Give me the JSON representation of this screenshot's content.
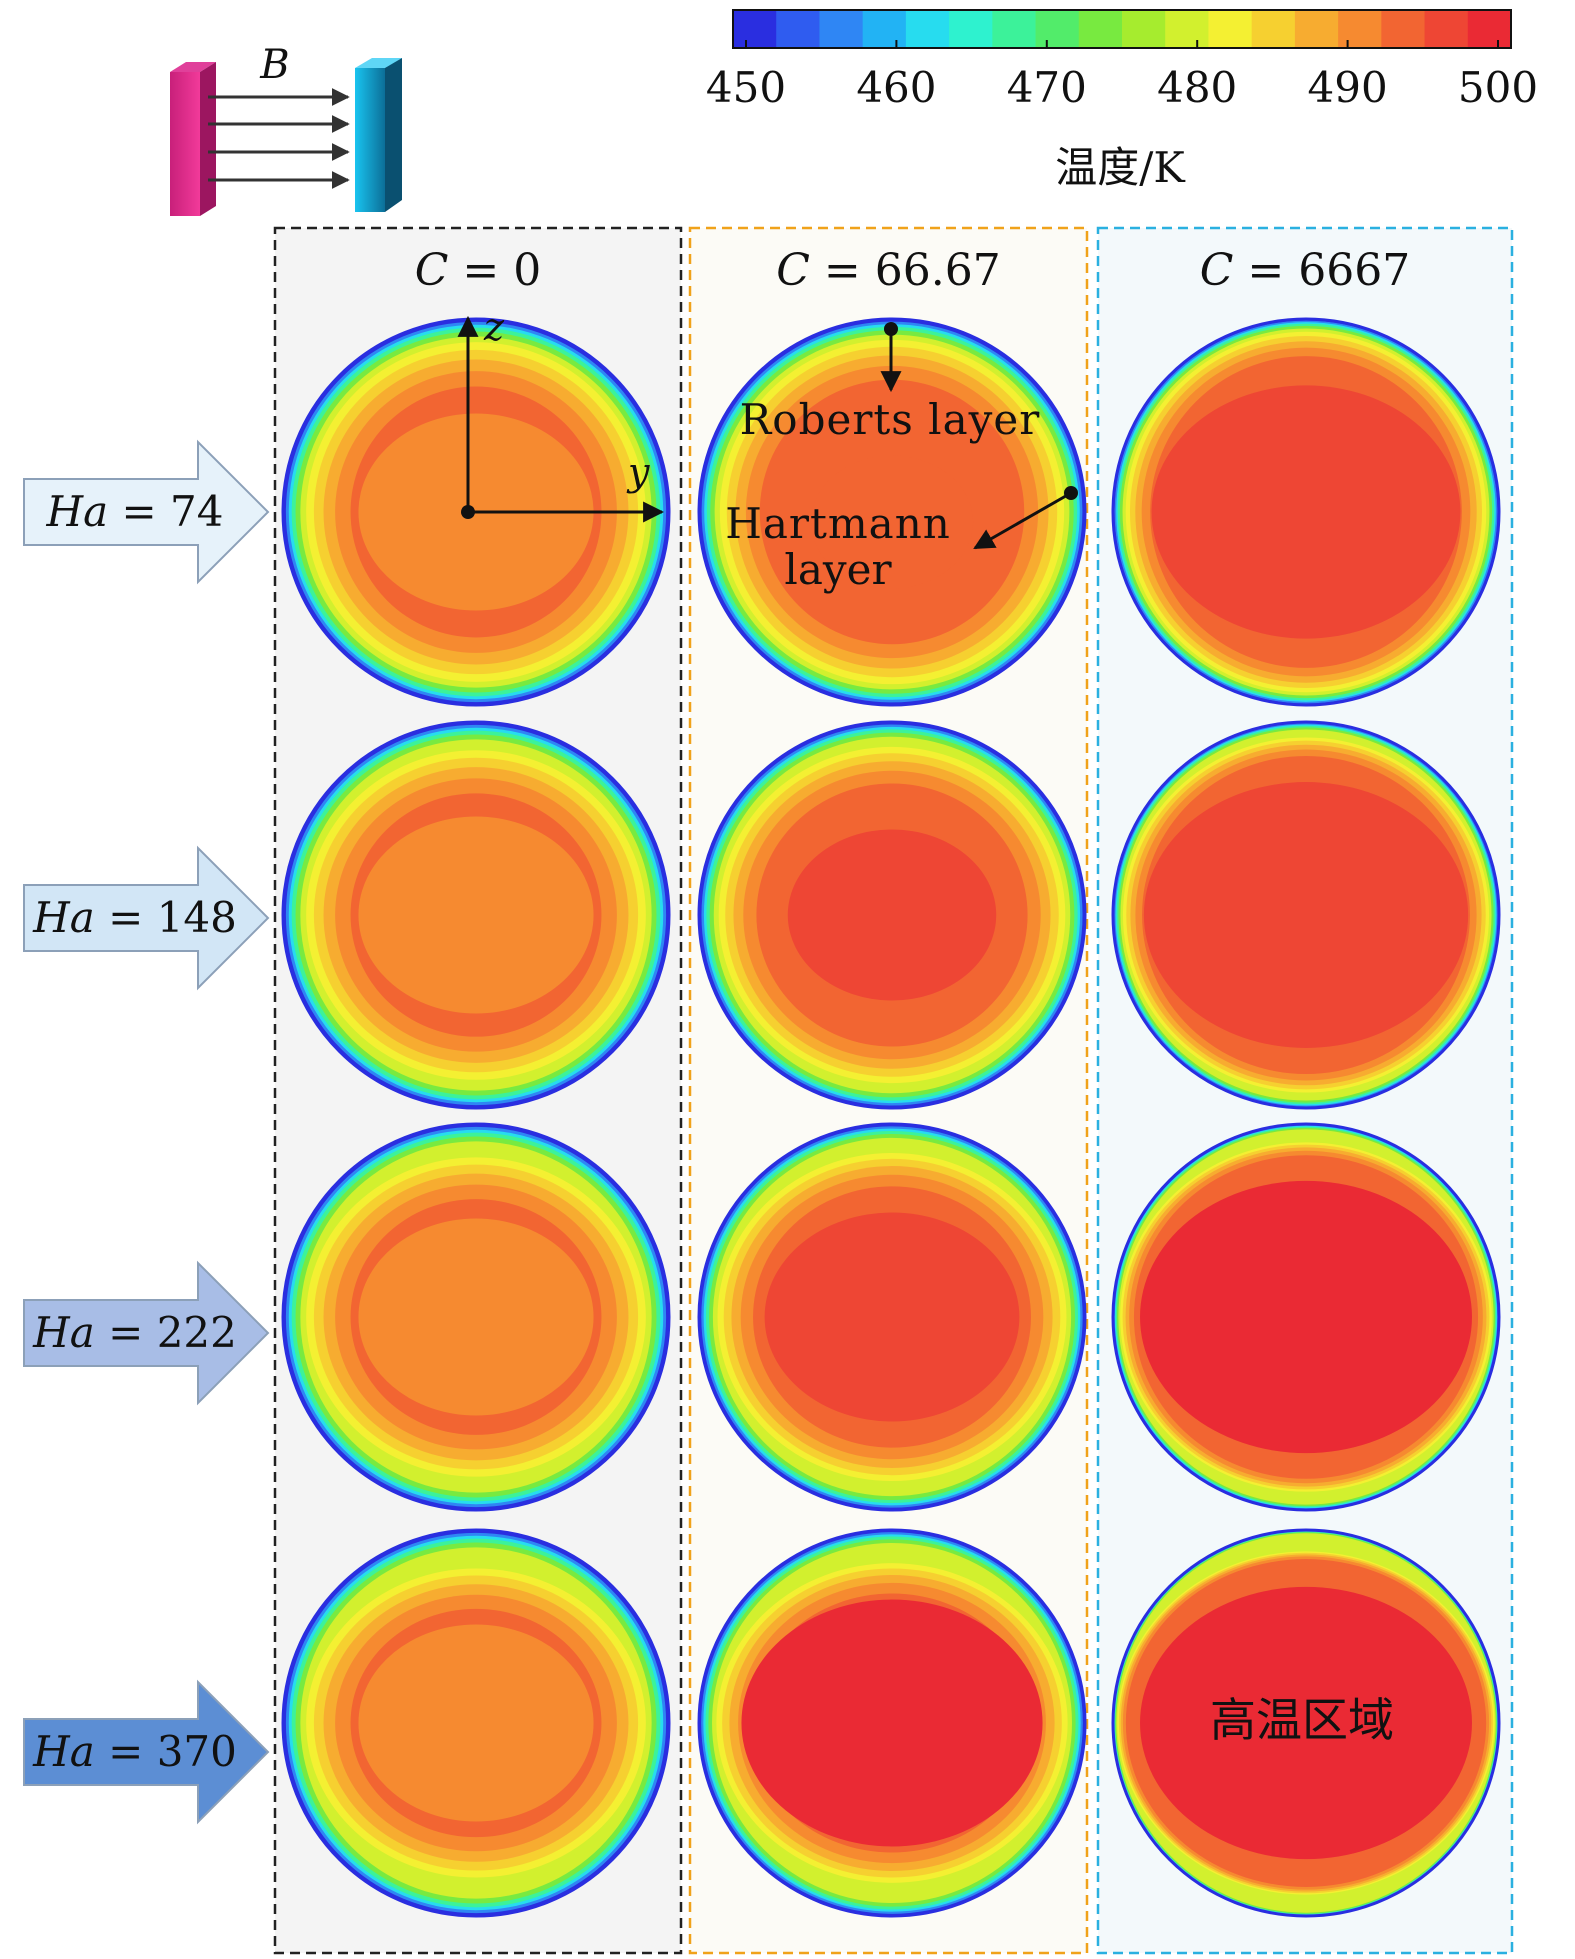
{
  "figure": {
    "field_label": "B",
    "colorbar": {
      "ticks": [
        "450",
        "460",
        "470",
        "480",
        "490",
        "500"
      ],
      "min": 450,
      "max": 500,
      "title": "温度/K",
      "colors": [
        "#2a2ee0",
        "#2f5cf0",
        "#2f86f4",
        "#22b3f4",
        "#27dcef",
        "#2ef2cf",
        "#3cf29a",
        "#52ec6a",
        "#78ea40",
        "#a6ec2e",
        "#d2f02e",
        "#f4f032",
        "#f6d030",
        "#f7ac30",
        "#f68a30",
        "#f26532",
        "#ee4634",
        "#ea2a34"
      ]
    },
    "columns": [
      {
        "label_var": "C",
        "label_val": "= 0",
        "border_color": "#222222",
        "bg": "#f4f4f4"
      },
      {
        "label_var": "C",
        "label_val": "= 66.67",
        "border_color": "#f0a21a",
        "bg": "#fcfbf6"
      },
      {
        "label_var": "C",
        "label_val": "= 6667",
        "border_color": "#2ab0e0",
        "bg": "#f3f9fb"
      }
    ],
    "rows": [
      {
        "label_var": "Ha",
        "label_val": "= 74",
        "arrow_color": "#e6f2fa"
      },
      {
        "label_var": "Ha",
        "label_val": "= 148",
        "arrow_color": "#d2e6f6"
      },
      {
        "label_var": "Ha",
        "label_val": "= 222",
        "arrow_color": "#a8bde6"
      },
      {
        "label_var": "Ha",
        "label_val": "= 370",
        "arrow_color": "#5c8ed4"
      }
    ],
    "axes": {
      "z": "z",
      "y": "y"
    },
    "annotations": {
      "roberts": "Roberts layer",
      "hartmann_line1": "Hartmann",
      "hartmann_line2": "layer",
      "high_temp_region": "高温区域"
    },
    "contour_core_temps_K": [
      [
        491,
        494,
        497
      ],
      [
        491,
        497,
        498
      ],
      [
        491,
        498,
        499
      ],
      [
        491,
        499,
        499
      ]
    ]
  }
}
